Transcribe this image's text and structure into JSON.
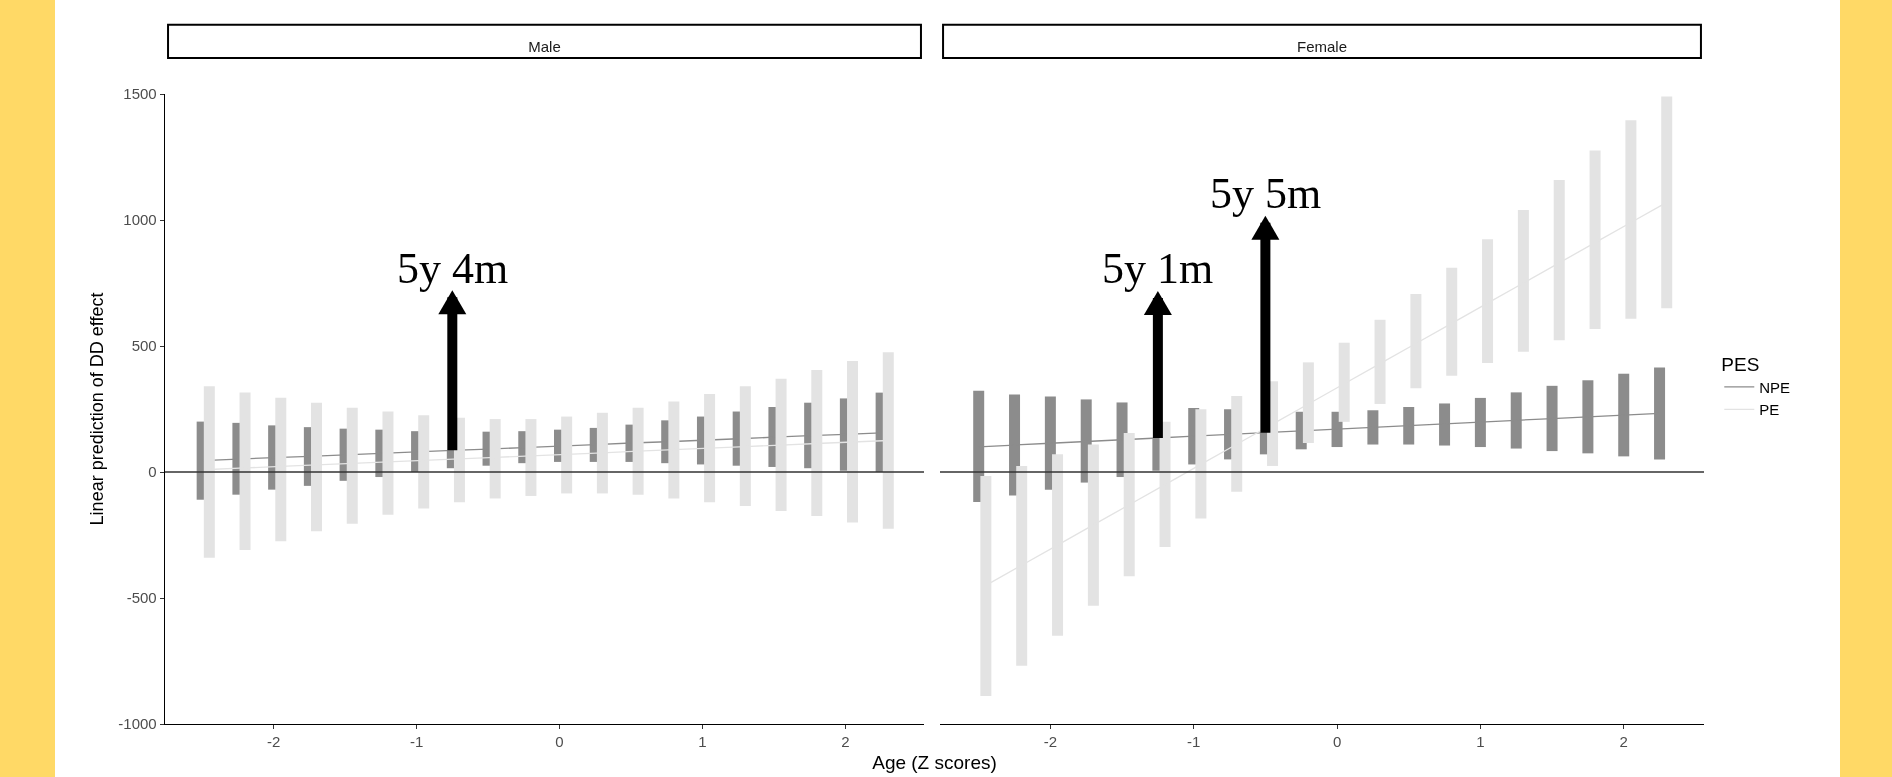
{
  "chart_data": [
    {
      "type": "line",
      "title": "Male",
      "xlabel": "Age (Z scores)",
      "ylabel": "Linear prediction of DD effect",
      "xlim": [
        -2.76,
        2.55
      ],
      "xticks": [
        -2,
        -1,
        0,
        1,
        2
      ],
      "ylim": [
        -1000,
        1500
      ],
      "yticks": [
        -1000,
        -500,
        0,
        500,
        1000,
        1500
      ],
      "grid": false,
      "marker": "none",
      "line_style": "solid",
      "ref_lines": [
        {
          "axis": "y",
          "value": 0,
          "color": "#333333"
        }
      ],
      "annotations": [
        {
          "text": "5y 4m",
          "x": -0.75,
          "y": 86
        }
      ],
      "series": [
        {
          "color": "#8c8c8c",
          "x": [
            -2.5,
            -2.25,
            -2,
            -1.75,
            -1.5,
            -1.25,
            -1,
            -0.75,
            -0.5,
            -0.25,
            0,
            0.25,
            0.5,
            0.75,
            1,
            1.25,
            1.5,
            1.75,
            2,
            2.25
          ],
          "values": [
            45,
            51,
            57,
            62,
            68,
            74,
            80,
            86,
            91,
            97,
            103,
            109,
            115,
            120,
            126,
            132,
            138,
            144,
            149,
            155
          ],
          "errors": [
            [
              -110,
              200
            ],
            [
              -90,
              195
            ],
            [
              -70,
              185
            ],
            [
              -55,
              178
            ],
            [
              -35,
              172
            ],
            [
              -20,
              168
            ],
            [
              0,
              162
            ],
            [
              15,
              86
            ],
            [
              25,
              160
            ],
            [
              35,
              162
            ],
            [
              40,
              168
            ],
            [
              40,
              175
            ],
            [
              40,
              188
            ],
            [
              35,
              205
            ],
            [
              30,
              220
            ],
            [
              25,
              240
            ],
            [
              20,
              258
            ],
            [
              15,
              275
            ],
            [
              5,
              292
            ],
            [
              0,
              315
            ]
          ]
        },
        {
          "color": "#e3e3e3",
          "x": [
            -2.45,
            -2.2,
            -1.95,
            -1.7,
            -1.45,
            -1.2,
            -0.95,
            -0.7,
            -0.45,
            -0.2,
            0.05,
            0.3,
            0.55,
            0.8,
            1.05,
            1.3,
            1.55,
            1.8,
            2.05,
            2.3
          ],
          "values": [
            10,
            16,
            22,
            28,
            34,
            40,
            46,
            52,
            58,
            64,
            70,
            76,
            83,
            89,
            95,
            101,
            107,
            113,
            119,
            125
          ],
          "errors": [
            [
              -340,
              340
            ],
            [
              -310,
              315
            ],
            [
              -275,
              295
            ],
            [
              -235,
              275
            ],
            [
              -205,
              255
            ],
            [
              -170,
              240
            ],
            [
              -145,
              225
            ],
            [
              -120,
              215
            ],
            [
              -105,
              210
            ],
            [
              -95,
              210
            ],
            [
              -85,
              220
            ],
            [
              -85,
              235
            ],
            [
              -90,
              255
            ],
            [
              -105,
              280
            ],
            [
              -120,
              310
            ],
            [
              -135,
              340
            ],
            [
              -155,
              370
            ],
            [
              -175,
              405
            ],
            [
              -200,
              440
            ],
            [
              -225,
              475
            ]
          ]
        }
      ]
    },
    {
      "type": "line",
      "title": "Female",
      "legend_title": "PES",
      "legend": "right",
      "tick_labels": "x",
      "xlim": [
        -2.77,
        2.56
      ],
      "xticks": [
        -2,
        -1,
        0,
        1,
        2
      ],
      "ylim": [
        -1000,
        1500
      ],
      "yticks": [
        -1000,
        -500,
        0,
        500,
        1000,
        1500
      ],
      "grid": false,
      "marker": "none",
      "line_style": "solid",
      "ref_lines": [
        {
          "axis": "y",
          "value": 0,
          "color": "#333333"
        }
      ],
      "annotations": [
        {
          "text": "5y 1m",
          "x": -1.25,
          "y": 135
        },
        {
          "text": "5y 5m",
          "x": -0.5,
          "y": 156
        }
      ],
      "series": [
        {
          "name": "NPE",
          "color": "#8c8c8c",
          "x": [
            -2.5,
            -2.25,
            -2,
            -1.75,
            -1.5,
            -1.25,
            -1,
            -0.75,
            -0.5,
            -0.25,
            0,
            0.25,
            0.5,
            0.75,
            1,
            1.25,
            1.5,
            1.75,
            2,
            2.25
          ],
          "values": [
            100,
            107,
            114,
            121,
            128,
            135,
            142,
            149,
            156,
            163,
            170,
            177,
            184,
            191,
            198,
            205,
            212,
            219,
            226,
            233
          ],
          "errors": [
            [
              -119,
              322
            ],
            [
              -93,
              308
            ],
            [
              -70,
              300
            ],
            [
              -42,
              288
            ],
            [
              -20,
              276
            ],
            [
              5,
              135
            ],
            [
              30,
              254
            ],
            [
              50,
              249
            ],
            [
              70,
              156
            ],
            [
              90,
              239
            ],
            [
              99,
              239
            ],
            [
              109,
              245
            ],
            [
              109,
              258
            ],
            [
              105,
              272
            ],
            [
              99,
              294
            ],
            [
              93,
              316
            ],
            [
              83,
              342
            ],
            [
              74,
              364
            ],
            [
              62,
              390
            ],
            [
              50,
              415
            ]
          ]
        },
        {
          "name": "PE",
          "color": "#e3e3e3",
          "x": [
            -2.45,
            -2.2,
            -1.95,
            -1.7,
            -1.45,
            -1.2,
            -0.95,
            -0.7,
            -0.45,
            -0.2,
            0.05,
            0.3,
            0.55,
            0.8,
            1.05,
            1.3,
            1.55,
            1.8,
            2.05,
            2.3
          ],
          "values": [
            -450,
            -370,
            -290,
            -210,
            -130,
            -50,
            30,
            110,
            190,
            270,
            350,
            430,
            510,
            590,
            670,
            750,
            830,
            910,
            990,
            1070
          ],
          "errors": [
            [
              -889,
              -16
            ],
            [
              -769,
              24
            ],
            [
              -650,
              70
            ],
            [
              -531,
              109
            ],
            [
              -414,
              155
            ],
            [
              -298,
              199
            ],
            [
              -185,
              249
            ],
            [
              -78,
              302
            ],
            [
              24,
              360
            ],
            [
              115,
              435
            ],
            [
              199,
              513
            ],
            [
              270,
              604
            ],
            [
              332,
              706
            ],
            [
              382,
              811
            ],
            [
              433,
              924
            ],
            [
              477,
              1040
            ],
            [
              523,
              1159
            ],
            [
              567,
              1276
            ],
            [
              608,
              1396
            ],
            [
              650,
              1490
            ]
          ]
        }
      ]
    }
  ]
}
